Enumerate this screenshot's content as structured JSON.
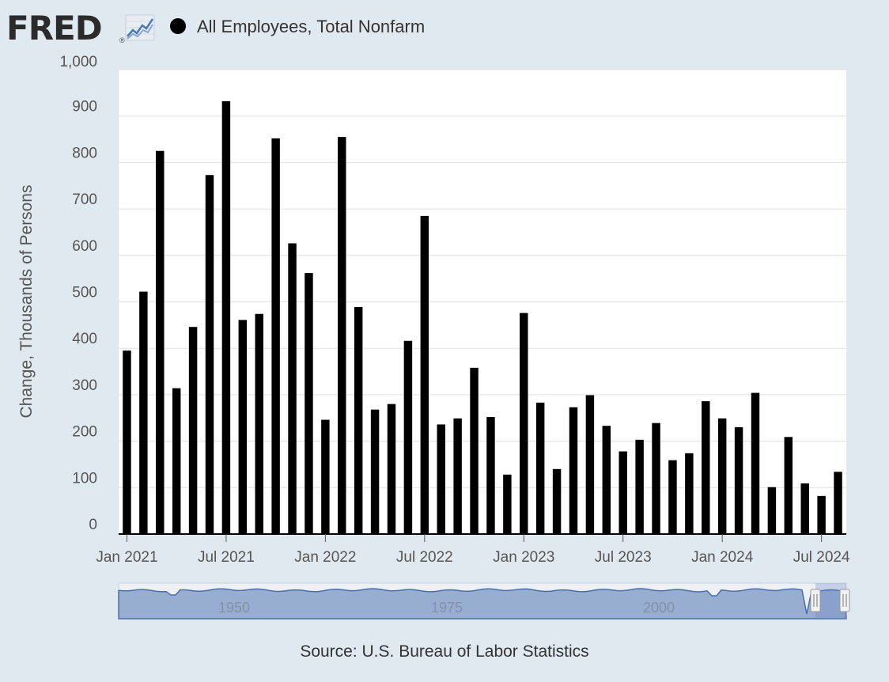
{
  "header": {
    "logo_text": "FRED",
    "logo_reg": "®",
    "logo_icon": "trend-chart-icon",
    "legend_label": "All Employees, Total Nonfarm",
    "legend_color": "#000000"
  },
  "source": "Source: U.S. Bureau of Labor Statistics",
  "colors": {
    "background": "#e1e9f0",
    "plot_background": "#ffffff",
    "bar": "#000000",
    "grid": "#e0e0e0",
    "navigator_fill": "#98aed0",
    "navigator_line": "#4a6ea8"
  },
  "chart_data": {
    "type": "bar",
    "ylabel": "Change, Thousands of Persons",
    "ylim": [
      0,
      1000
    ],
    "yticks": [
      0,
      100,
      200,
      300,
      400,
      500,
      600,
      700,
      800,
      900,
      1000
    ],
    "ytick_labels": [
      "0",
      "100",
      "200",
      "300",
      "400",
      "500",
      "600",
      "700",
      "800",
      "900",
      "1,000"
    ],
    "grid": true,
    "legend": "top-left",
    "x_tick_labels": [
      "Jan 2021",
      "Jul 2021",
      "Jan 2022",
      "Jul 2022",
      "Jan 2023",
      "Jul 2023",
      "Jan 2024",
      "Jul 2024"
    ],
    "x": [
      "2021-01",
      "2021-02",
      "2021-03",
      "2021-04",
      "2021-05",
      "2021-06",
      "2021-07",
      "2021-08",
      "2021-09",
      "2021-10",
      "2021-11",
      "2021-12",
      "2022-01",
      "2022-02",
      "2022-03",
      "2022-04",
      "2022-05",
      "2022-06",
      "2022-07",
      "2022-08",
      "2022-09",
      "2022-10",
      "2022-11",
      "2022-12",
      "2023-01",
      "2023-02",
      "2023-03",
      "2023-04",
      "2023-05",
      "2023-06",
      "2023-07",
      "2023-08",
      "2023-09",
      "2023-10",
      "2023-11",
      "2023-12",
      "2024-01",
      "2024-02",
      "2024-03",
      "2024-04",
      "2024-05",
      "2024-06",
      "2024-07",
      "2024-08"
    ],
    "series": [
      {
        "values": [
          395,
          522,
          825,
          314,
          446,
          773,
          932,
          461,
          474,
          852,
          626,
          562,
          246,
          855,
          489,
          268,
          280,
          416,
          685,
          236,
          249,
          358,
          252,
          128,
          476,
          283,
          140,
          273,
          299,
          233,
          178,
          203,
          239,
          159,
          174,
          286,
          249,
          230,
          304,
          101,
          209,
          109,
          82,
          134
        ]
      }
    ],
    "navigator": {
      "tick_labels": [
        "1950",
        "1975",
        "2000"
      ]
    }
  }
}
